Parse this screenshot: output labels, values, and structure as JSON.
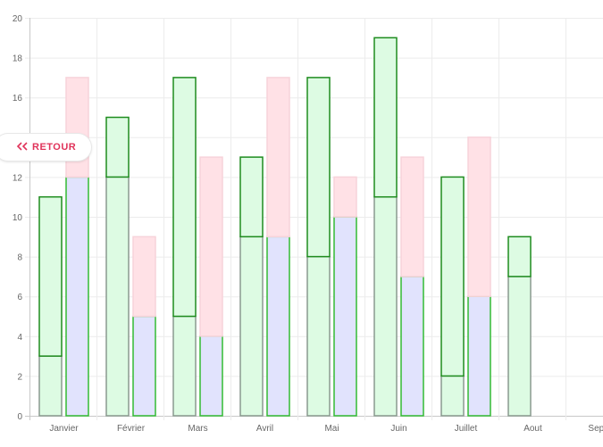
{
  "back_button": {
    "label": "RETOUR",
    "icon": "double-chevron-left-icon",
    "color": "#e0335a"
  },
  "chart_data": {
    "type": "bar",
    "stacked": true,
    "categories": [
      "Janvier",
      "Février",
      "Mars",
      "Avril",
      "Mai",
      "Juin",
      "Juillet",
      "Aout",
      "Septe"
    ],
    "ylim": [
      0,
      20
    ],
    "yticks": [
      0,
      2,
      4,
      6,
      8,
      10,
      12,
      14,
      16,
      18,
      20
    ],
    "grid": true,
    "legend": "none",
    "groups": [
      {
        "stack": "A",
        "series": [
          {
            "values": [
              3,
              12,
              5,
              9,
              8,
              11,
              2,
              7,
              null
            ],
            "fill": "#ddfbe3",
            "stroke": "#8a9a8f"
          },
          {
            "values": [
              8,
              3,
              12,
              4,
              9,
              8,
              10,
              2,
              null
            ],
            "fill": "#ddfbe3",
            "stroke": "#1e8c1e"
          }
        ]
      },
      {
        "stack": "B",
        "series": [
          {
            "values": [
              12,
              5,
              4,
              9,
              10,
              7,
              6,
              null,
              null
            ],
            "fill": "#e1e3fd",
            "stroke": "#33bb33"
          },
          {
            "values": [
              5,
              4,
              9,
              8,
              2,
              6,
              8,
              null,
              null
            ],
            "fill": "#ffe1e6",
            "stroke": "#f7d3da"
          }
        ]
      }
    ]
  }
}
